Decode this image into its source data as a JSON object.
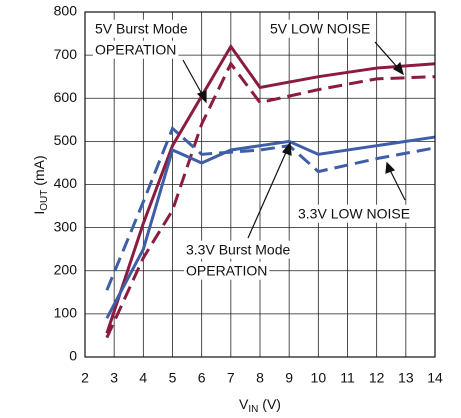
{
  "chart_data": {
    "type": "line",
    "xlabel": [
      "V",
      "IN",
      " (V)"
    ],
    "ylabel": [
      "I",
      "OUT",
      " (mA)"
    ],
    "xlim": [
      2,
      14
    ],
    "xticks": [
      2,
      3,
      4,
      5,
      6,
      7,
      8,
      9,
      10,
      11,
      12,
      13,
      14
    ],
    "ylim": [
      0,
      800
    ],
    "yticks": [
      0,
      100,
      200,
      300,
      400,
      500,
      600,
      700,
      800
    ],
    "grid": true,
    "series": [
      {
        "name": "5V Burst Mode OPERATION",
        "color": "#8c1c3f",
        "dashed": false,
        "x": [
          2.75,
          4,
          5,
          7,
          8,
          10,
          12,
          14
        ],
        "values": [
          55,
          310,
          490,
          720,
          625,
          650,
          670,
          680
        ]
      },
      {
        "name": "5V LOW NOISE",
        "color": "#8c1c3f",
        "dashed": true,
        "x": [
          2.75,
          4,
          5,
          6,
          7,
          8,
          10,
          12,
          14
        ],
        "values": [
          45,
          230,
          340,
          540,
          680,
          590,
          620,
          645,
          650
        ]
      },
      {
        "name": "3.3V Burst Mode OPERATION",
        "color": "#3f5ea8",
        "dashed": false,
        "x": [
          2.75,
          4,
          5,
          6,
          7,
          8,
          9,
          10,
          12,
          14
        ],
        "values": [
          90,
          250,
          480,
          450,
          480,
          490,
          500,
          470,
          490,
          510
        ]
      },
      {
        "name": "3.3V LOW NOISE",
        "color": "#3f5ea8",
        "dashed": true,
        "x": [
          2.75,
          4,
          5,
          6,
          8,
          9,
          10,
          12,
          14
        ],
        "values": [
          155,
          360,
          530,
          470,
          480,
          490,
          430,
          460,
          485
        ]
      }
    ],
    "annotations": [
      {
        "lines": [
          "5V Burst Mode",
          "OPERATION"
        ]
      },
      {
        "lines": [
          "5V LOW NOISE"
        ]
      },
      {
        "lines": [
          "3.3V LOW NOISE"
        ]
      },
      {
        "lines": [
          "3.3V Burst Mode",
          "OPERATION"
        ]
      }
    ]
  }
}
